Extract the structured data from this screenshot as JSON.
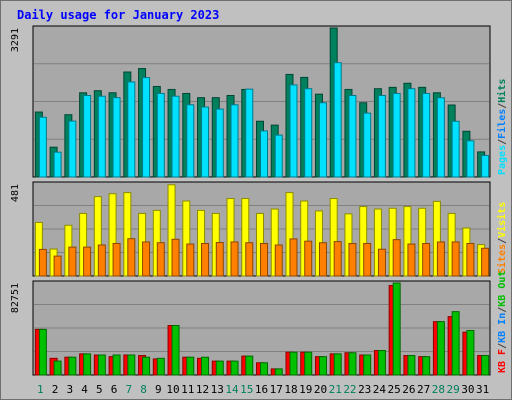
{
  "chart_data": [
    {
      "type": "bar",
      "title": "Daily usage for January 2023",
      "panel": "hits-files-pages",
      "ymax_label": "3291",
      "ymax": 3291,
      "legend": [
        {
          "name": "Pages",
          "color": "#00e0ff"
        },
        {
          "name": "Files",
          "color": "#0080ff"
        },
        {
          "name": "Hits",
          "color": "#00805c"
        }
      ],
      "legend_separator": "/",
      "separator_color": "#404040",
      "categories": [
        "1",
        "2",
        "3",
        "4",
        "5",
        "6",
        "7",
        "8",
        "9",
        "10",
        "11",
        "12",
        "13",
        "14",
        "15",
        "16",
        "17",
        "18",
        "19",
        "20",
        "21",
        "22",
        "23",
        "24",
        "25",
        "26",
        "27",
        "28",
        "29",
        "30",
        "31"
      ],
      "weekend_days": [
        "1",
        "7",
        "8",
        "14",
        "15",
        "21",
        "22",
        "28",
        "29"
      ],
      "weekend_color": "#00805c",
      "weekday_color": "#000000",
      "series": [
        {
          "name": "Hits",
          "color": "#00805c",
          "values": [
            1435,
            658,
            1376,
            1860,
            1906,
            1860,
            2319,
            2395,
            2000,
            1934,
            1845,
            1752,
            1752,
            1800,
            1934,
            1231,
            1146,
            2266,
            2200,
            1830,
            3291,
            1934,
            1640,
            1950,
            1980,
            2070,
            1980,
            1860,
            1590,
            1010,
            554
          ]
        },
        {
          "name": "Pages",
          "color": "#00e0ff",
          "values": [
            1320,
            547,
            1235,
            1800,
            1784,
            1752,
            2100,
            2195,
            1845,
            1784,
            1595,
            1545,
            1500,
            1595,
            1940,
            1017,
            925,
            2034,
            1950,
            1640,
            2525,
            1800,
            1410,
            1800,
            1845,
            1950,
            1845,
            1750,
            1230,
            800,
            475
          ]
        }
      ]
    },
    {
      "type": "bar",
      "panel": "visits-sites",
      "ymax_label": "481",
      "ymax": 481,
      "legend": [
        {
          "name": "Sites",
          "color": "#ff8000"
        },
        {
          "name": "Visits",
          "color": "#ffff00"
        }
      ],
      "legend_separator": "/",
      "separator_color": "#404040",
      "categories": [
        "1",
        "2",
        "3",
        "4",
        "5",
        "6",
        "7",
        "8",
        "9",
        "10",
        "11",
        "12",
        "13",
        "14",
        "15",
        "16",
        "17",
        "18",
        "19",
        "20",
        "21",
        "22",
        "23",
        "24",
        "25",
        "26",
        "27",
        "28",
        "29",
        "30",
        "31"
      ],
      "series": [
        {
          "name": "Visits",
          "color": "#ffff00",
          "values": [
            280,
            141,
            265,
            327,
            415,
            430,
            436,
            327,
            343,
            477,
            392,
            343,
            327,
            405,
            405,
            327,
            350,
            436,
            392,
            340,
            405,
            325,
            363,
            350,
            354,
            363,
            354,
            390,
            327,
            251,
            164
          ]
        },
        {
          "name": "Sites",
          "color": "#ff8000",
          "values": [
            139,
            104,
            151,
            151,
            162,
            170,
            195,
            178,
            174,
            192,
            167,
            170,
            175,
            178,
            174,
            170,
            162,
            194,
            182,
            174,
            180,
            170,
            170,
            140,
            190,
            167,
            170,
            178,
            178,
            170,
            145
          ]
        }
      ]
    },
    {
      "type": "bar",
      "panel": "kbytes",
      "ymax_label": "82751",
      "ymax": 82751,
      "legend": [
        {
          "name": "KB F",
          "color": "#ff0000"
        },
        {
          "name": "KB In",
          "color": "#0080ff"
        },
        {
          "name": "KB Out",
          "color": "#00c000"
        }
      ],
      "legend_separator": "/",
      "separator_color": "#404040",
      "categories": [
        "1",
        "2",
        "3",
        "4",
        "5",
        "6",
        "7",
        "8",
        "9",
        "10",
        "11",
        "12",
        "13",
        "14",
        "15",
        "16",
        "17",
        "18",
        "19",
        "20",
        "21",
        "22",
        "23",
        "24",
        "25",
        "26",
        "27",
        "28",
        "29",
        "30",
        "31"
      ],
      "series": [
        {
          "name": "KB F",
          "color": "#ff0000",
          "values": [
            41000,
            15000,
            16000,
            19000,
            18000,
            16500,
            18000,
            17500,
            14500,
            44500,
            16000,
            15000,
            12500,
            12500,
            17000,
            11000,
            5500,
            20500,
            20500,
            16500,
            19000,
            20000,
            18000,
            22000,
            80500,
            17500,
            16500,
            48000,
            52500,
            38500,
            17500
          ]
        },
        {
          "name": "KB Out",
          "color": "#00c000",
          "values": [
            41000,
            12500,
            16000,
            19000,
            18000,
            18000,
            18000,
            16000,
            15000,
            44500,
            16000,
            16000,
            12500,
            12500,
            17000,
            11000,
            5500,
            20500,
            20500,
            16500,
            19000,
            20000,
            18000,
            22000,
            82751,
            17500,
            16500,
            48000,
            57000,
            40000,
            17500
          ]
        }
      ]
    }
  ]
}
